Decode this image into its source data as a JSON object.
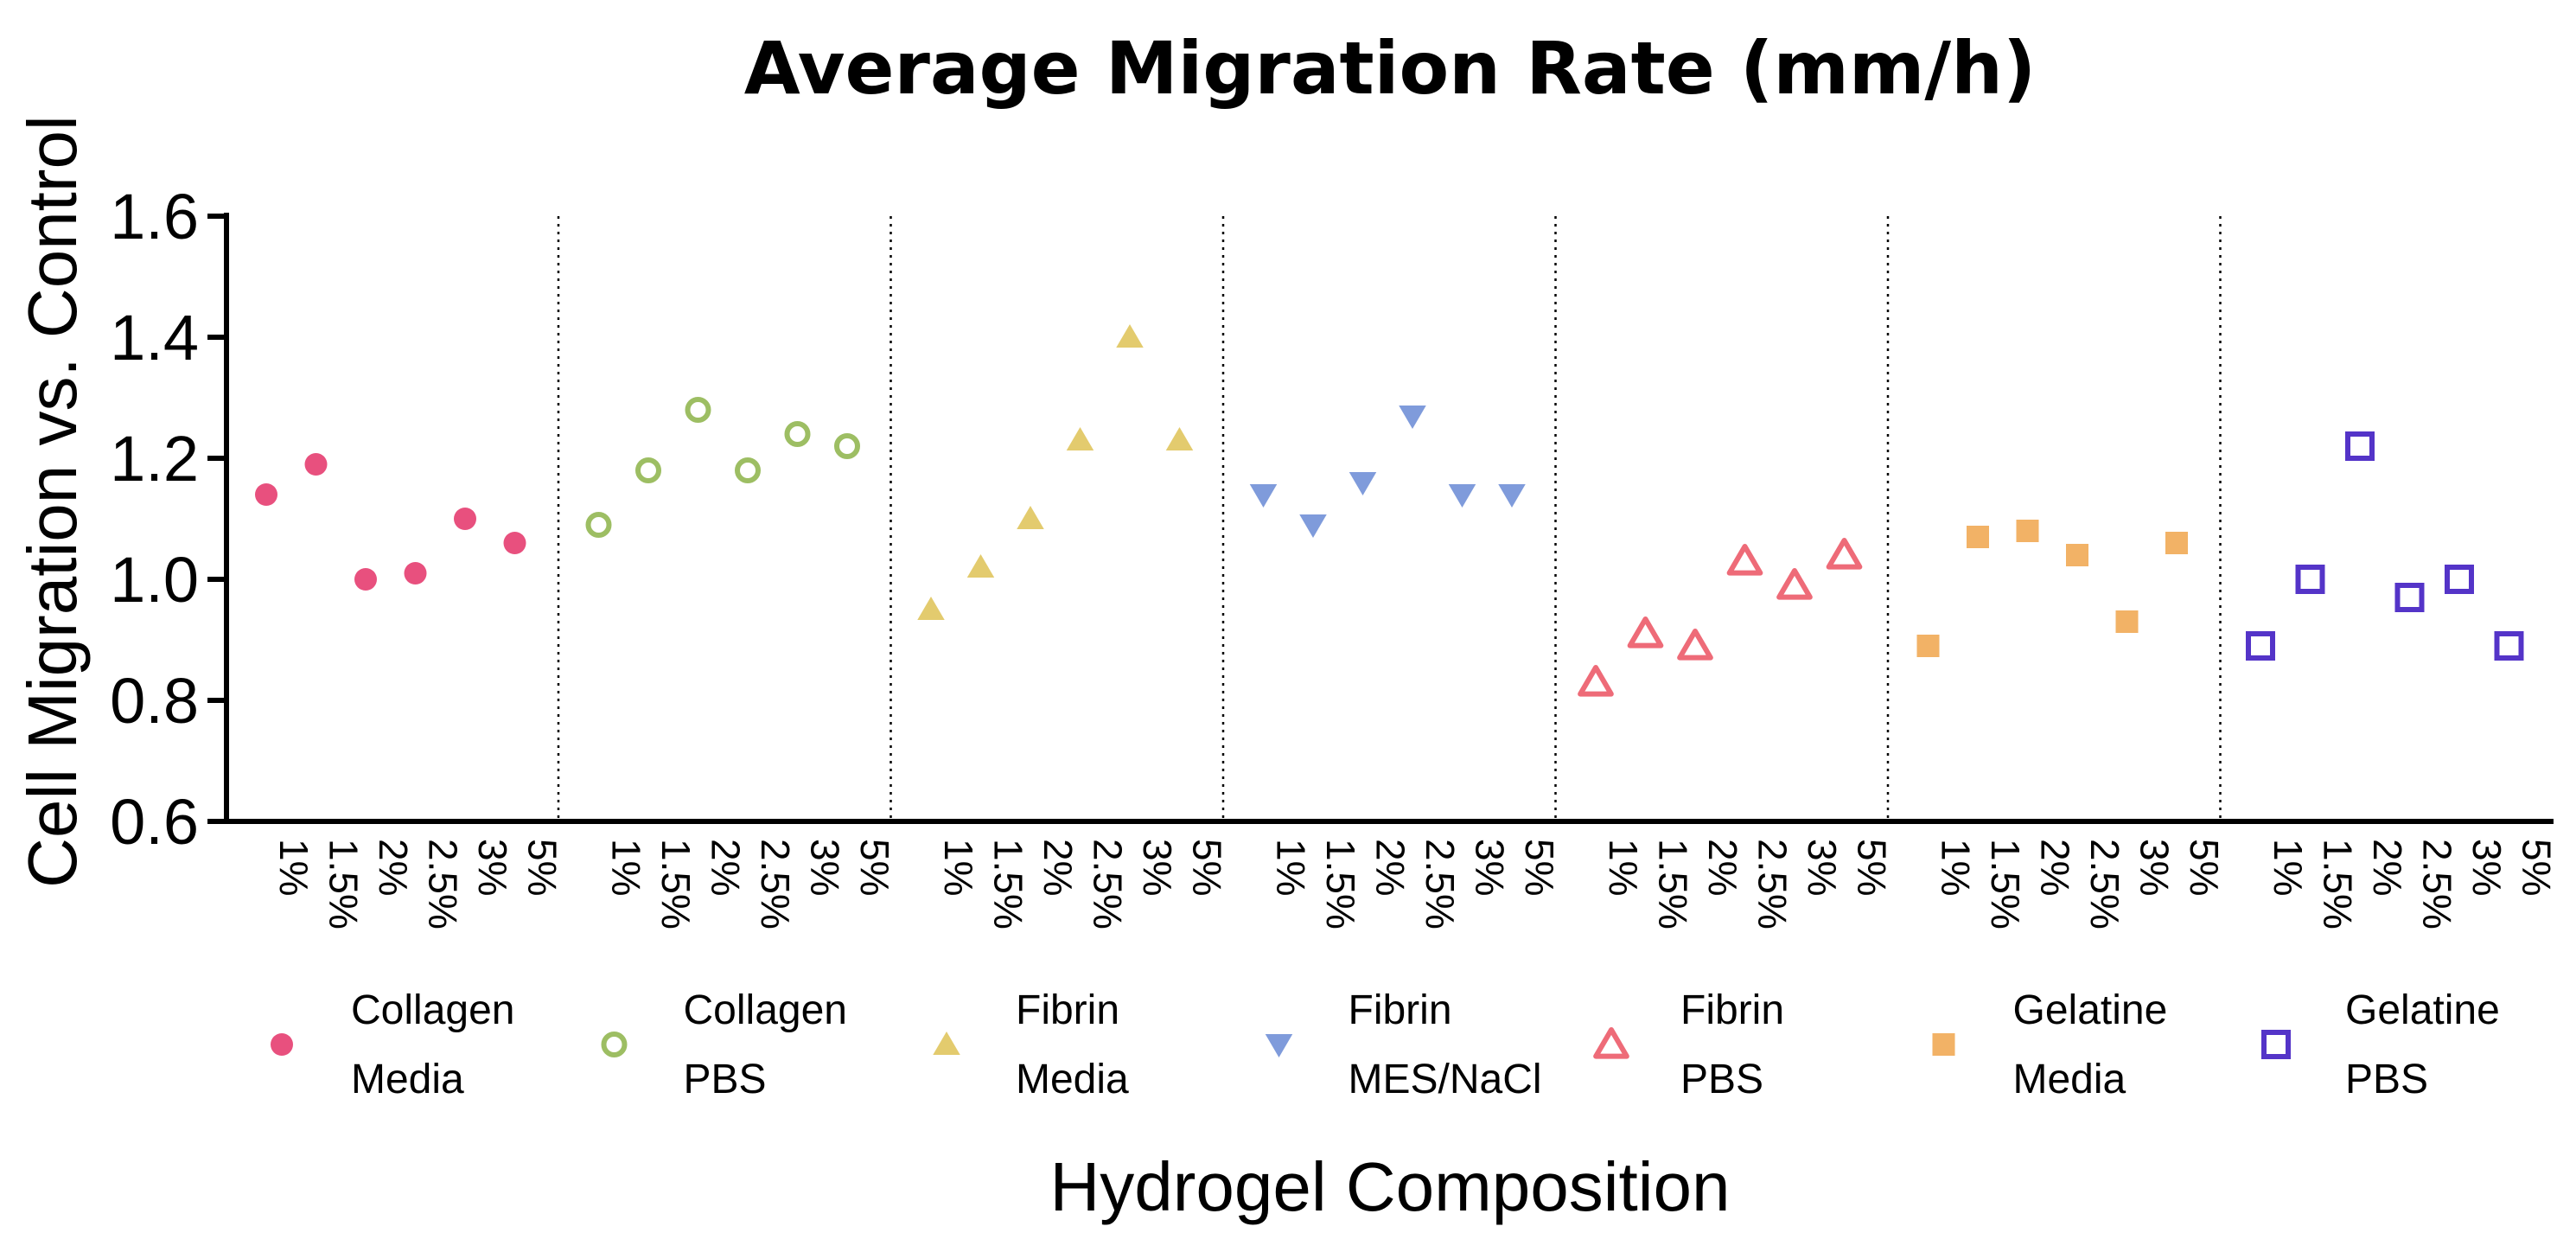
{
  "chart_data": {
    "type": "scatter",
    "title": "Average Migration Rate (mm/h)",
    "xlabel": "Hydrogel Composition",
    "ylabel": "Cell Migration vs. Control",
    "ylim": [
      0.6,
      1.6
    ],
    "yticks": [
      "0.6",
      "0.8",
      "1.0",
      "1.2",
      "1.4",
      "1.6"
    ],
    "categories": [
      "1%",
      "1.5%",
      "2%",
      "2.5%",
      "3%",
      "5%"
    ],
    "grid": false,
    "legend_position": "bottom",
    "series": [
      {
        "name": "Collagen Media",
        "legend_lines": [
          "Collagen",
          "Media"
        ],
        "marker": "circle",
        "filled": true,
        "color": "#E8507E",
        "values": [
          1.14,
          1.19,
          1.0,
          1.01,
          1.1,
          1.06
        ]
      },
      {
        "name": "Collagen PBS",
        "legend_lines": [
          "Collagen",
          "PBS"
        ],
        "marker": "circle",
        "filled": false,
        "color": "#9DBE63",
        "values": [
          1.09,
          1.18,
          1.28,
          1.18,
          1.24,
          1.22
        ]
      },
      {
        "name": "Fibrin Media",
        "legend_lines": [
          "Fibrin",
          "Media"
        ],
        "marker": "triangle-up",
        "filled": true,
        "color": "#E3CB6E",
        "values": [
          0.95,
          1.02,
          1.1,
          1.23,
          1.4,
          1.23
        ]
      },
      {
        "name": "Fibrin MES/NaCl",
        "legend_lines": [
          "Fibrin",
          "MES/NaCl"
        ],
        "marker": "triangle-down",
        "filled": true,
        "color": "#7F9BDB",
        "values": [
          1.14,
          1.09,
          1.16,
          1.27,
          1.14,
          1.14
        ]
      },
      {
        "name": "Fibrin PBS",
        "legend_lines": [
          "Fibrin",
          "PBS"
        ],
        "marker": "triangle-up",
        "filled": false,
        "color": "#EE6B78",
        "values": [
          0.83,
          0.91,
          0.89,
          1.03,
          0.99,
          1.04
        ]
      },
      {
        "name": "Gelatine Media",
        "legend_lines": [
          "Gelatine",
          "Media"
        ],
        "marker": "square",
        "filled": true,
        "color": "#F2B266",
        "values": [
          0.89,
          1.07,
          1.08,
          1.04,
          0.93,
          1.06
        ]
      },
      {
        "name": "Gelatine PBS",
        "legend_lines": [
          "Gelatine",
          "PBS"
        ],
        "marker": "square",
        "filled": false,
        "color": "#5434C8",
        "values": [
          0.89,
          1.0,
          1.22,
          0.97,
          1.0,
          0.89
        ]
      }
    ]
  }
}
